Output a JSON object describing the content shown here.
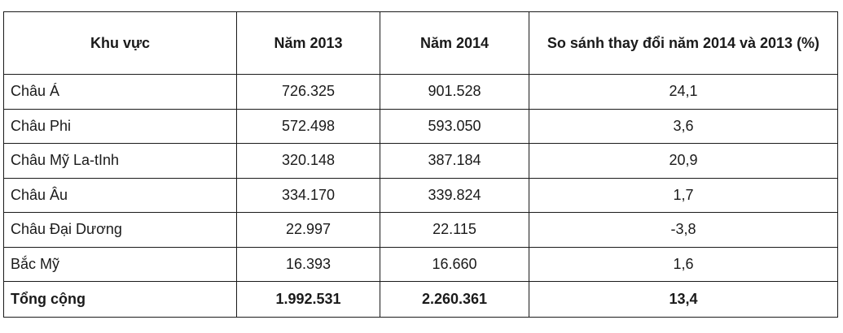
{
  "table": {
    "headers": [
      "Khu vực",
      "Năm 2013",
      "Năm 2014",
      "So sánh thay đổi năm 2014 và 2013 (%)"
    ],
    "rows": [
      {
        "region": "Châu Á",
        "y2013": "726.325",
        "y2014": "901.528",
        "change": "24,1"
      },
      {
        "region": "Châu Phi",
        "y2013": "572.498",
        "y2014": "593.050",
        "change": "3,6"
      },
      {
        "region": "Châu Mỹ La-tInh",
        "y2013": "320.148",
        "y2014": "387.184",
        "change": "20,9"
      },
      {
        "region": "Châu Âu",
        "y2013": "334.170",
        "y2014": "339.824",
        "change": "1,7"
      },
      {
        "region": "Châu Đại Dương",
        "y2013": "22.997",
        "y2014": "22.115",
        "change": "-3,8"
      },
      {
        "region": "Bắc Mỹ",
        "y2013": "16.393",
        "y2014": "16.660",
        "change": "1,6"
      }
    ],
    "total": {
      "region": "Tổng cộng",
      "y2013": "1.992.531",
      "y2014": "2.260.361",
      "change": "13,4"
    }
  }
}
